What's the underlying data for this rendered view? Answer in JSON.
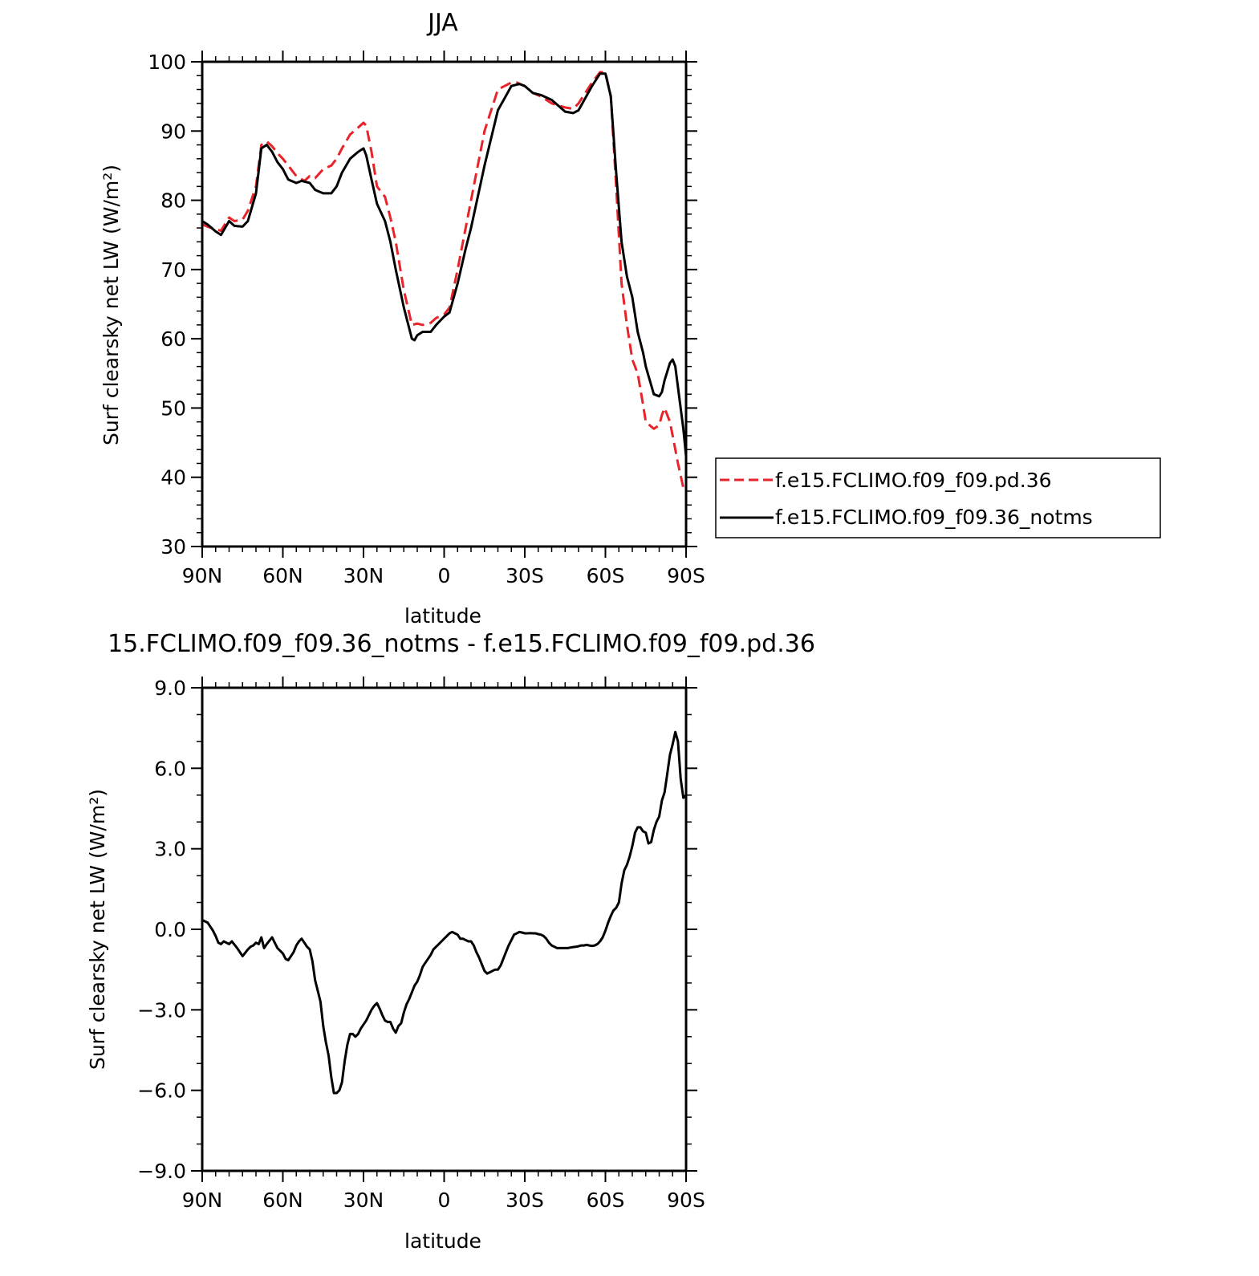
{
  "chart_data": [
    {
      "type": "line",
      "title": "JJA",
      "xlabel": "latitude",
      "ylabel": "Surf clearsky net LW (W/m²)",
      "xlim": [
        -90,
        90
      ],
      "ylim": [
        30,
        100
      ],
      "x_tick_values": [
        -90,
        -60,
        -30,
        0,
        30,
        60,
        90
      ],
      "x_tick_labels": [
        "90N",
        "60N",
        "30N",
        "0",
        "30S",
        "60S",
        "90S"
      ],
      "y_tick_values": [
        30,
        40,
        50,
        60,
        70,
        80,
        90,
        100
      ],
      "y_tick_labels": [
        "30",
        "40",
        "50",
        "60",
        "70",
        "80",
        "90",
        "100"
      ],
      "legend": "right",
      "series": [
        {
          "name": "f.e15.FCLIMO.f09_f09.pd.36",
          "color": "#e8242a",
          "dash": "dashed",
          "x": [
            -90,
            -88,
            -85,
            -83,
            -80,
            -78,
            -75,
            -73,
            -70,
            -68,
            -66,
            -64,
            -62,
            -60,
            -57,
            -55,
            -52,
            -50,
            -48,
            -45,
            -42,
            -40,
            -38,
            -35,
            -32,
            -30,
            -29,
            -27,
            -25,
            -22,
            -20,
            -18,
            -15,
            -12,
            -10,
            -8,
            -5,
            -3,
            0,
            2,
            5,
            8,
            10,
            15,
            20,
            25,
            27,
            30,
            33,
            36,
            40,
            45,
            48,
            50,
            55,
            58,
            60,
            62,
            64,
            66,
            68,
            70,
            72,
            74,
            75,
            78,
            80,
            81,
            82,
            84,
            85,
            87,
            89,
            90
          ],
          "y": [
            76.5,
            76.2,
            75.8,
            75.6,
            77.5,
            77,
            77.2,
            78.5,
            82,
            88,
            88.5,
            87.8,
            86.8,
            86,
            84.5,
            83.5,
            82.8,
            83.5,
            83.2,
            84.5,
            85,
            86,
            87.5,
            89.5,
            90.5,
            91.2,
            90.8,
            87,
            82,
            80.5,
            77.5,
            74,
            67,
            62,
            62.2,
            62,
            62.3,
            63,
            63.5,
            64.5,
            70,
            76,
            80,
            90,
            96,
            97,
            97,
            96.5,
            95.5,
            95,
            94,
            93.4,
            93.2,
            94,
            97,
            98.5,
            98.5,
            95,
            82,
            68,
            62,
            57,
            55,
            50.5,
            48,
            47,
            47.5,
            49,
            50,
            48,
            46,
            42,
            38.5,
            38
          ]
        },
        {
          "name": "f.e15.FCLIMO.f09_f09.36_notms",
          "color": "#000000",
          "dash": "solid",
          "x": [
            -90,
            -88,
            -85,
            -83,
            -80,
            -78,
            -75,
            -73,
            -70,
            -68,
            -66,
            -64,
            -62,
            -60,
            -58,
            -55,
            -53,
            -50,
            -48,
            -45,
            -42,
            -40,
            -38,
            -35,
            -32,
            -30,
            -29,
            -27,
            -25,
            -22,
            -20,
            -18,
            -15,
            -12,
            -11,
            -10,
            -8,
            -5,
            -3,
            0,
            2,
            5,
            8,
            10,
            15,
            20,
            25,
            28,
            30,
            33,
            36,
            40,
            45,
            48,
            50,
            55,
            58,
            60,
            62,
            64,
            66,
            68,
            70,
            72,
            74,
            75,
            78,
            80,
            81,
            82,
            84,
            85,
            86,
            87,
            89,
            90
          ],
          "y": [
            77,
            76.5,
            75.5,
            75,
            77,
            76.3,
            76.2,
            77,
            81,
            87.5,
            88,
            87,
            85.5,
            84.5,
            83,
            82.5,
            82.8,
            82.5,
            81.5,
            81,
            81,
            82,
            84,
            86,
            87,
            87.5,
            86.5,
            83,
            79.5,
            77,
            74,
            70,
            64.5,
            60,
            59.8,
            60.5,
            61,
            61,
            62,
            63.2,
            63.8,
            68,
            73,
            76,
            85,
            93,
            96.5,
            96.8,
            96.5,
            95.5,
            95.2,
            94.5,
            92.8,
            92.6,
            93,
            96.5,
            98.3,
            98.3,
            95,
            84,
            74,
            69,
            66,
            61,
            58,
            56,
            52,
            51.7,
            52.3,
            54,
            56.5,
            57,
            56,
            53,
            47,
            43
          ]
        }
      ]
    },
    {
      "type": "line",
      "title": "15.FCLIMO.f09_f09.36_notms - f.e15.FCLIMO.f09_f09.pd.36",
      "xlabel": "latitude",
      "ylabel": "Surf clearsky net LW (W/m²)",
      "xlim": [
        -90,
        90
      ],
      "ylim": [
        -9,
        9
      ],
      "x_tick_values": [
        -90,
        -60,
        -30,
        0,
        30,
        60,
        90
      ],
      "x_tick_labels": [
        "90N",
        "60N",
        "30N",
        "0",
        "30S",
        "60S",
        "90S"
      ],
      "y_tick_values": [
        -9,
        -6,
        -3,
        0,
        3,
        6,
        9
      ],
      "y_tick_labels": [
        "−9.0",
        "−6.0",
        "−3.0",
        "0.0",
        "3.0",
        "6.0",
        "9.0"
      ],
      "series": [
        {
          "color": "#000000",
          "dash": "solid",
          "x": [
            -90,
            -89,
            -88,
            -86,
            -85,
            -84,
            -83,
            -82,
            -81,
            -80,
            -79,
            -77,
            -75,
            -73,
            -72,
            -71,
            -70,
            -69,
            -68,
            -67,
            -66,
            -64,
            -63,
            -62,
            -60,
            -59,
            -58,
            -57,
            -56,
            -55,
            -54,
            -53,
            -52,
            -51,
            -50,
            -49,
            -48,
            -47,
            -46,
            -45,
            -44,
            -43,
            -42,
            -41,
            -40,
            -39,
            -38,
            -37,
            -36,
            -35,
            -34,
            -33,
            -32,
            -31,
            -30,
            -29,
            -28,
            -27,
            -26,
            -25,
            -24,
            -23,
            -22,
            -21,
            -20,
            -19,
            -18,
            -17,
            -16,
            -15,
            -14,
            -13,
            -12,
            -11,
            -10,
            -9,
            -8,
            -7,
            -6,
            -5,
            -4,
            -3,
            -2,
            -1,
            0,
            1,
            2,
            3,
            4,
            5,
            6,
            7,
            8,
            9,
            10,
            11,
            12,
            13,
            14,
            15,
            16,
            17,
            18,
            19,
            20,
            21,
            22,
            23,
            24,
            25,
            26,
            27,
            28,
            29,
            30,
            31,
            32,
            33,
            34,
            35,
            36,
            37,
            38,
            39,
            40,
            41,
            42,
            43,
            44,
            45,
            46,
            47,
            48,
            49,
            50,
            51,
            52,
            53,
            54,
            55,
            56,
            57,
            58,
            59,
            60,
            61,
            62,
            63,
            64,
            65,
            66,
            67,
            68,
            69,
            70,
            71,
            72,
            73,
            74,
            75,
            76,
            77,
            78,
            79,
            80,
            81,
            82,
            83,
            84,
            85,
            86,
            87,
            88,
            89,
            90
          ],
          "y": [
            0.35,
            0.3,
            0.25,
            -0.05,
            -0.25,
            -0.5,
            -0.55,
            -0.45,
            -0.5,
            -0.55,
            -0.45,
            -0.7,
            -1,
            -0.75,
            -0.65,
            -0.6,
            -0.5,
            -0.55,
            -0.3,
            -0.7,
            -0.55,
            -0.3,
            -0.5,
            -0.7,
            -0.9,
            -1.1,
            -1.15,
            -1,
            -0.85,
            -0.6,
            -0.45,
            -0.35,
            -0.5,
            -0.65,
            -0.75,
            -1.2,
            -1.9,
            -2.3,
            -2.7,
            -3.6,
            -4.2,
            -4.7,
            -5.5,
            -6.1,
            -6.1,
            -6,
            -5.7,
            -4.9,
            -4.3,
            -3.9,
            -3.9,
            -4,
            -3.9,
            -3.7,
            -3.55,
            -3.4,
            -3.2,
            -3,
            -2.85,
            -2.75,
            -2.95,
            -3.2,
            -3.4,
            -3.45,
            -3.45,
            -3.7,
            -3.85,
            -3.6,
            -3.5,
            -3.1,
            -2.8,
            -2.6,
            -2.35,
            -2.1,
            -1.95,
            -1.7,
            -1.4,
            -1.25,
            -1.1,
            -0.95,
            -0.75,
            -0.65,
            -0.55,
            -0.45,
            -0.35,
            -0.25,
            -0.15,
            -0.1,
            -0.15,
            -0.2,
            -0.35,
            -0.35,
            -0.4,
            -0.45,
            -0.45,
            -0.6,
            -0.85,
            -1.05,
            -1.3,
            -1.55,
            -1.65,
            -1.6,
            -1.55,
            -1.5,
            -1.5,
            -1.35,
            -1.1,
            -0.85,
            -0.6,
            -0.4,
            -0.2,
            -0.15,
            -0.1,
            -0.12,
            -0.15,
            -0.15,
            -0.14,
            -0.15,
            -0.15,
            -0.18,
            -0.2,
            -0.25,
            -0.35,
            -0.5,
            -0.6,
            -0.65,
            -0.7,
            -0.7,
            -0.7,
            -0.7,
            -0.7,
            -0.68,
            -0.66,
            -0.65,
            -0.63,
            -0.6,
            -0.6,
            -0.58,
            -0.6,
            -0.62,
            -0.6,
            -0.55,
            -0.45,
            -0.3,
            -0.05,
            0.25,
            0.5,
            0.7,
            0.8,
            1,
            1.7,
            2.2,
            2.4,
            2.7,
            3.1,
            3.6,
            3.8,
            3.8,
            3.65,
            3.6,
            3.2,
            3.25,
            3.7,
            4,
            4.2,
            4.8,
            5.1,
            5.8,
            6.5,
            6.9,
            7.35,
            7.0,
            5.6,
            4.9,
            5.0
          ]
        }
      ]
    }
  ]
}
